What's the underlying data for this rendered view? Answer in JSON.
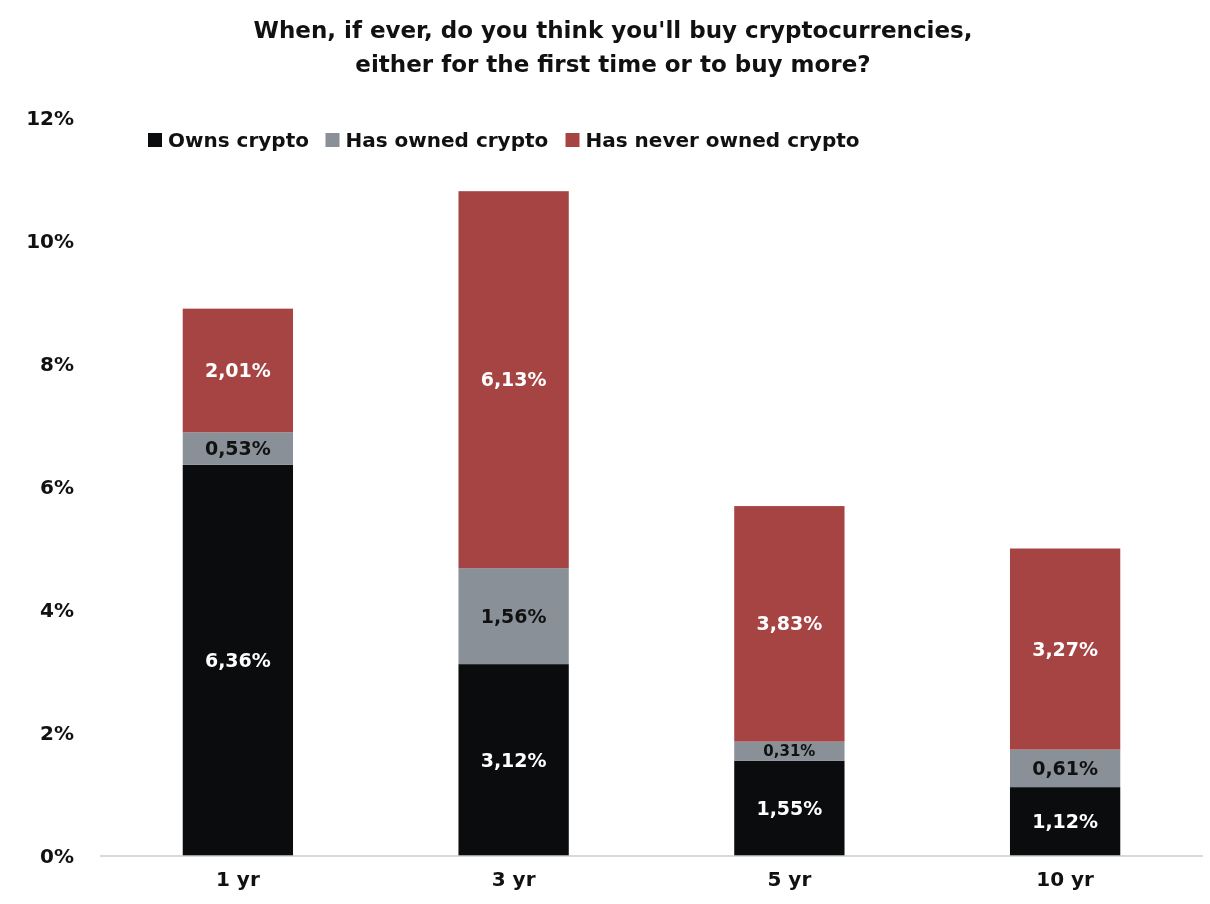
{
  "chart_data": {
    "type": "bar",
    "title": "When, if ever, do you think you'll buy cryptocurrencies, either for the first time or to buy more?",
    "categories": [
      "1 yr",
      "3 yr",
      "5 yr",
      "10 yr"
    ],
    "stacked": true,
    "legend": "top left",
    "grid": false,
    "ylim": [
      0,
      12
    ],
    "yticks": [
      {
        "value": 0,
        "label": "0%"
      },
      {
        "value": 2,
        "label": "2%"
      },
      {
        "value": 4,
        "label": "4%"
      },
      {
        "value": 6,
        "label": "6%"
      },
      {
        "value": 8,
        "label": "8%"
      },
      {
        "value": 10,
        "label": "10%"
      },
      {
        "value": 12,
        "label": "12%"
      }
    ],
    "series": [
      {
        "name": "Owns crypto",
        "color": "#0b0c0e",
        "values": [
          6.36,
          3.12,
          1.55,
          1.12
        ],
        "value_labels": [
          "6,36%",
          "3,12%",
          "1,55%",
          "1,12%"
        ]
      },
      {
        "name": "Has owned crypto",
        "color": "#899097",
        "values": [
          0.53,
          1.56,
          0.31,
          0.61
        ],
        "value_labels": [
          "0,53%",
          "1,56%",
          "0,31%",
          "0,61%"
        ]
      },
      {
        "name": "Has never owned crypto",
        "color": "#a64444",
        "values": [
          2.01,
          6.13,
          3.83,
          3.27
        ],
        "value_labels": [
          "2,01%",
          "6,13%",
          "3,83%",
          "3,27%"
        ]
      }
    ]
  }
}
